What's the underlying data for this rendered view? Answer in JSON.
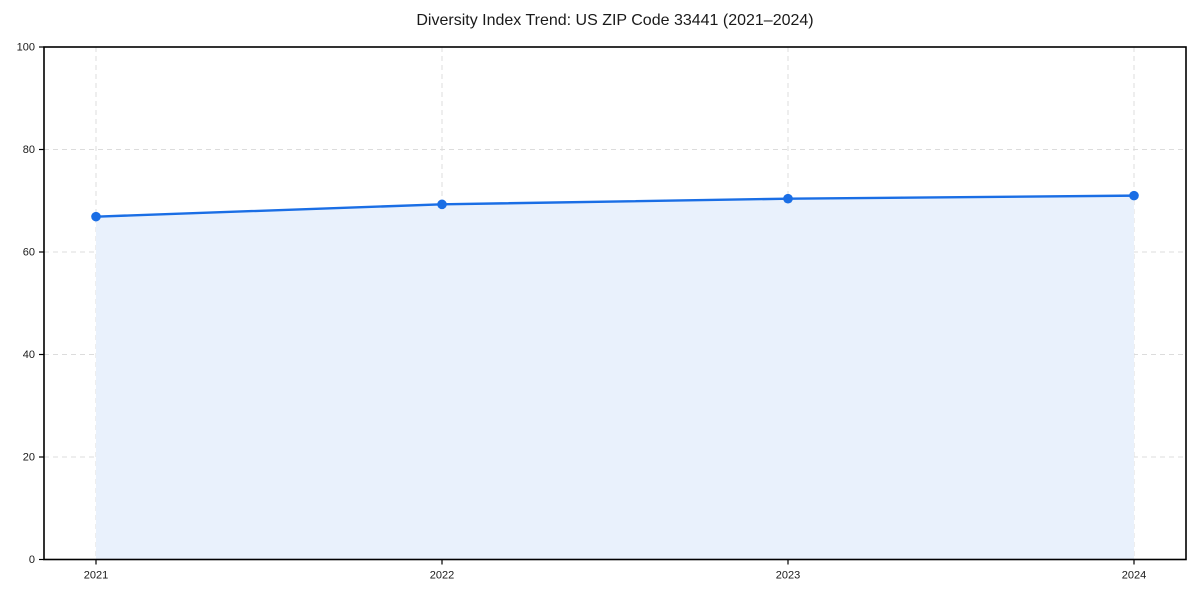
{
  "chart_data": {
    "type": "area",
    "title": "Diversity Index Trend: US ZIP Code 33441 (2021–2024)",
    "categories": [
      "2021",
      "2022",
      "2023",
      "2024"
    ],
    "series": [
      {
        "name": "Diversity Index",
        "values": [
          66.9,
          69.3,
          70.4,
          71.0
        ]
      }
    ],
    "xlabel": "",
    "ylabel": "",
    "ylim": [
      0,
      100
    ],
    "yticks": [
      0,
      20,
      40,
      60,
      80,
      100
    ],
    "grid": "dashed",
    "legend": "none",
    "colors": {
      "line": "#1a6ee5",
      "marker": "#1a6ee5",
      "fill": "#e9f1fc",
      "grid": "#dcdcdc",
      "spine": "#000000",
      "tick": "#000000",
      "text": "#1a1a1a"
    }
  }
}
